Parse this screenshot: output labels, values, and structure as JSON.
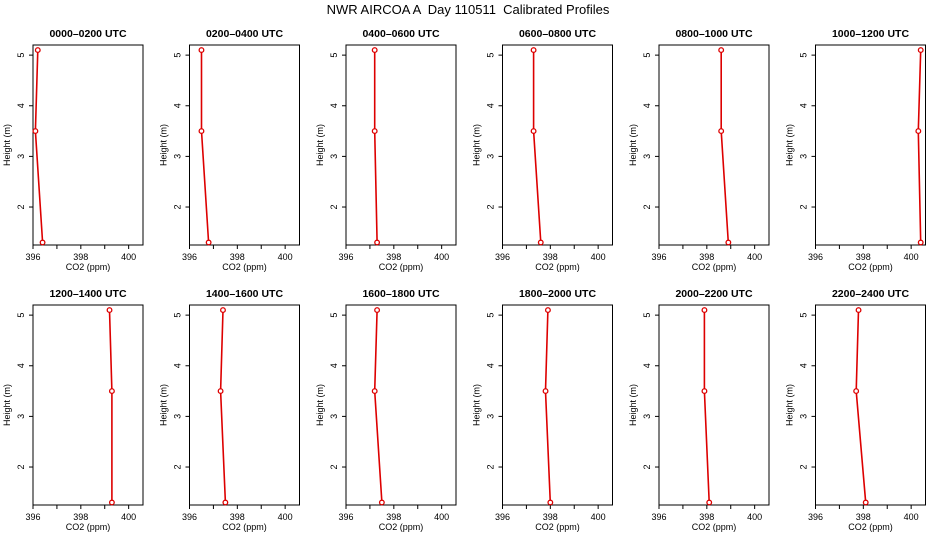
{
  "figure_title": "NWR AIRCOA A  Day 110511  Calibrated Profiles",
  "colors": {
    "series": "#dd0000",
    "axis": "#000000"
  },
  "chart_data": [
    {
      "type": "line",
      "title": "0000–0200 UTC",
      "xlabel": "CO2 (ppm)",
      "ylabel": "Height (m)",
      "xlim": [
        396,
        400.6
      ],
      "ylim": [
        1.25,
        5.2
      ],
      "xticks": [
        396,
        398,
        400
      ],
      "yticks": [
        2,
        3,
        4,
        5
      ],
      "x": [
        396.2,
        396.1,
        396.4
      ],
      "y": [
        5.1,
        3.5,
        1.3
      ]
    },
    {
      "type": "line",
      "title": "0200–0400 UTC",
      "xlabel": "CO2 (ppm)",
      "ylabel": "Height (m)",
      "xlim": [
        396,
        400.6
      ],
      "ylim": [
        1.25,
        5.2
      ],
      "xticks": [
        396,
        398,
        400
      ],
      "yticks": [
        2,
        3,
        4,
        5
      ],
      "x": [
        396.5,
        396.5,
        396.8
      ],
      "y": [
        5.1,
        3.5,
        1.3
      ]
    },
    {
      "type": "line",
      "title": "0400–0600 UTC",
      "xlabel": "CO2 (ppm)",
      "ylabel": "Height (m)",
      "xlim": [
        396,
        400.6
      ],
      "ylim": [
        1.25,
        5.2
      ],
      "xticks": [
        396,
        398,
        400
      ],
      "yticks": [
        2,
        3,
        4,
        5
      ],
      "x": [
        397.2,
        397.2,
        397.3
      ],
      "y": [
        5.1,
        3.5,
        1.3
      ]
    },
    {
      "type": "line",
      "title": "0600–0800 UTC",
      "xlabel": "CO2 (ppm)",
      "ylabel": "Height (m)",
      "xlim": [
        396,
        400.6
      ],
      "ylim": [
        1.25,
        5.2
      ],
      "xticks": [
        396,
        398,
        400
      ],
      "yticks": [
        2,
        3,
        4,
        5
      ],
      "x": [
        397.3,
        397.3,
        397.6
      ],
      "y": [
        5.1,
        3.5,
        1.3
      ]
    },
    {
      "type": "line",
      "title": "0800–1000 UTC",
      "xlabel": "CO2 (ppm)",
      "ylabel": "Height (m)",
      "xlim": [
        396,
        400.6
      ],
      "ylim": [
        1.25,
        5.2
      ],
      "xticks": [
        396,
        398,
        400
      ],
      "yticks": [
        2,
        3,
        4,
        5
      ],
      "x": [
        398.6,
        398.6,
        398.9
      ],
      "y": [
        5.1,
        3.5,
        1.3
      ]
    },
    {
      "type": "line",
      "title": "1000–1200 UTC",
      "xlabel": "CO2 (ppm)",
      "ylabel": "Height (m)",
      "xlim": [
        396,
        400.6
      ],
      "ylim": [
        1.25,
        5.2
      ],
      "xticks": [
        396,
        398,
        400
      ],
      "yticks": [
        2,
        3,
        4,
        5
      ],
      "x": [
        400.4,
        400.3,
        400.4
      ],
      "y": [
        5.1,
        3.5,
        1.3
      ]
    },
    {
      "type": "line",
      "title": "1200–1400 UTC",
      "xlabel": "CO2 (ppm)",
      "ylabel": "Height (m)",
      "xlim": [
        396,
        400.6
      ],
      "ylim": [
        1.25,
        5.2
      ],
      "xticks": [
        396,
        398,
        400
      ],
      "yticks": [
        2,
        3,
        4,
        5
      ],
      "x": [
        399.2,
        399.3,
        399.3
      ],
      "y": [
        5.1,
        3.5,
        1.3
      ]
    },
    {
      "type": "line",
      "title": "1400–1600 UTC",
      "xlabel": "CO2 (ppm)",
      "ylabel": "Height (m)",
      "xlim": [
        396,
        400.6
      ],
      "ylim": [
        1.25,
        5.2
      ],
      "xticks": [
        396,
        398,
        400
      ],
      "yticks": [
        2,
        3,
        4,
        5
      ],
      "x": [
        397.4,
        397.3,
        397.5
      ],
      "y": [
        5.1,
        3.5,
        1.3
      ]
    },
    {
      "type": "line",
      "title": "1600–1800 UTC",
      "xlabel": "CO2 (ppm)",
      "ylabel": "Height (m)",
      "xlim": [
        396,
        400.6
      ],
      "ylim": [
        1.25,
        5.2
      ],
      "xticks": [
        396,
        398,
        400
      ],
      "yticks": [
        2,
        3,
        4,
        5
      ],
      "x": [
        397.3,
        397.2,
        397.5
      ],
      "y": [
        5.1,
        3.5,
        1.3
      ]
    },
    {
      "type": "line",
      "title": "1800–2000 UTC",
      "xlabel": "CO2 (ppm)",
      "ylabel": "Height (m)",
      "xlim": [
        396,
        400.6
      ],
      "ylim": [
        1.25,
        5.2
      ],
      "xticks": [
        396,
        398,
        400
      ],
      "yticks": [
        2,
        3,
        4,
        5
      ],
      "x": [
        397.9,
        397.8,
        398.0
      ],
      "y": [
        5.1,
        3.5,
        1.3
      ]
    },
    {
      "type": "line",
      "title": "2000–2200 UTC",
      "xlabel": "CO2 (ppm)",
      "ylabel": "Height (m)",
      "xlim": [
        396,
        400.6
      ],
      "ylim": [
        1.25,
        5.2
      ],
      "xticks": [
        396,
        398,
        400
      ],
      "yticks": [
        2,
        3,
        4,
        5
      ],
      "x": [
        397.9,
        397.9,
        398.1
      ],
      "y": [
        5.1,
        3.5,
        1.3
      ]
    },
    {
      "type": "line",
      "title": "2200–2400 UTC",
      "xlabel": "CO2 (ppm)",
      "ylabel": "Height (m)",
      "xlim": [
        396,
        400.6
      ],
      "ylim": [
        1.25,
        5.2
      ],
      "xticks": [
        396,
        398,
        400
      ],
      "yticks": [
        2,
        3,
        4,
        5
      ],
      "x": [
        397.8,
        397.7,
        398.1
      ],
      "y": [
        5.1,
        3.5,
        1.3
      ]
    }
  ]
}
